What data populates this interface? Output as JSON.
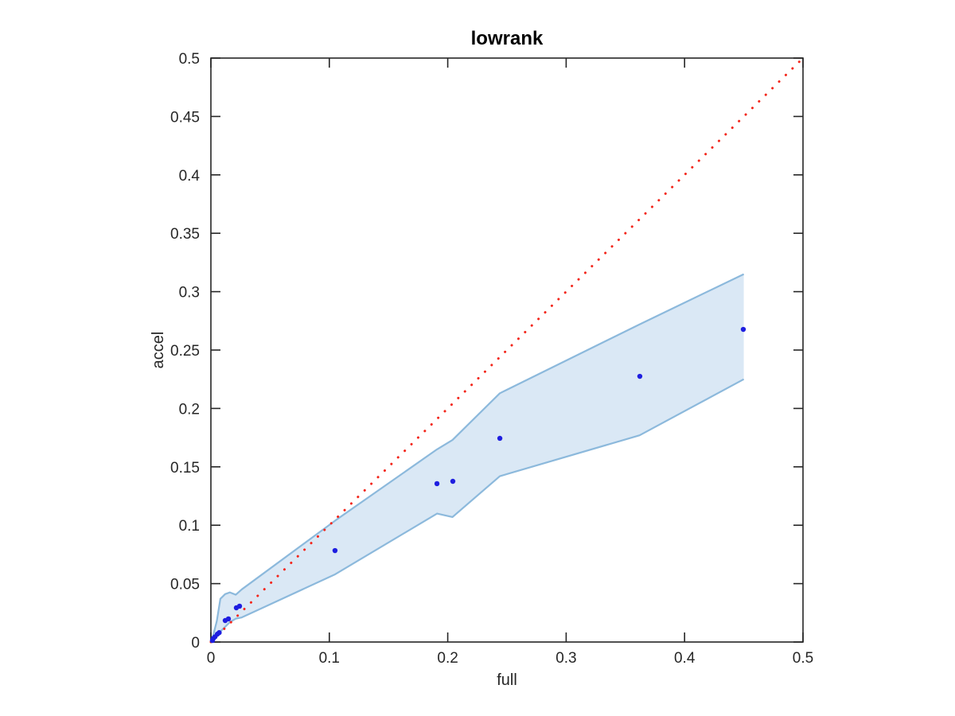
{
  "figure": {
    "background": "#ffffff"
  },
  "chart_data": {
    "type": "scatter",
    "title": "lowrank",
    "xlabel": "full",
    "ylabel": "accel",
    "xlim": [
      0,
      0.5
    ],
    "ylim": [
      0,
      0.5
    ],
    "grid": false,
    "legend": null,
    "box": true,
    "axis_color": "#262626",
    "xticks": {
      "values": [
        0,
        0.1,
        0.2,
        0.3,
        0.4,
        0.5
      ],
      "labels": [
        "0",
        "0.1",
        "0.2",
        "0.3",
        "0.4",
        "0.5"
      ]
    },
    "yticks": {
      "values": [
        0,
        0.05,
        0.1,
        0.15,
        0.2,
        0.25,
        0.3,
        0.35,
        0.4,
        0.45,
        0.5
      ],
      "labels": [
        "0",
        "0.05",
        "0.1",
        "0.15",
        "0.2",
        "0.25",
        "0.3",
        "0.35",
        "0.4",
        "0.45",
        "0.5"
      ]
    },
    "identity_line": {
      "style": "dotted",
      "color": "#f3261b",
      "from": [
        0,
        0
      ],
      "to": [
        0.5,
        0.5
      ]
    },
    "confidence_band": {
      "fill_color": "#dae8f5",
      "edge_color": "#8cb9dc",
      "x": [
        0,
        0.002,
        0.005,
        0.008,
        0.012,
        0.016,
        0.021,
        0.026,
        0.105,
        0.191,
        0.204,
        0.244,
        0.362,
        0.45
      ],
      "upper": [
        0,
        0.006,
        0.018,
        0.037,
        0.041,
        0.0425,
        0.0405,
        0.045,
        0.104,
        0.165,
        0.173,
        0.213,
        0.272,
        0.315
      ],
      "lower": [
        0,
        0.001,
        0.005,
        0.009,
        0.013,
        0.017,
        0.02,
        0.021,
        0.058,
        0.11,
        0.107,
        0.142,
        0.177,
        0.225
      ]
    },
    "points": {
      "color": "#1e1ee0",
      "x": [
        0.0013,
        0.002,
        0.0035,
        0.0055,
        0.007,
        0.0121,
        0.0148,
        0.0215,
        0.0242,
        0.1048,
        0.1909,
        0.2043,
        0.244,
        0.3622,
        0.4496
      ],
      "y": [
        0.0013,
        0.003,
        0.0045,
        0.0068,
        0.008,
        0.0184,
        0.0198,
        0.0293,
        0.0307,
        0.0783,
        0.1356,
        0.1376,
        0.1744,
        0.2275,
        0.2677
      ]
    }
  }
}
